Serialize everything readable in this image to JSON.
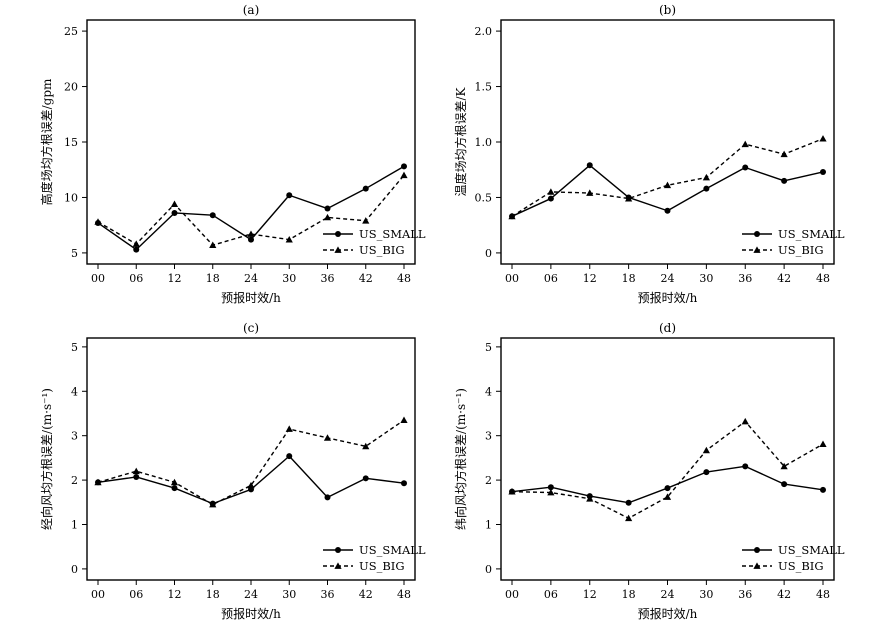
{
  "figure": {
    "x_categories": [
      "00",
      "06",
      "12",
      "18",
      "24",
      "30",
      "36",
      "42",
      "48"
    ]
  },
  "chart_data": [
    {
      "type": "line",
      "title": "(a)",
      "xlabel": "预报时效/h",
      "ylabel": "高度场均方根误差/gpm",
      "ylim": [
        4,
        26
      ],
      "yticks": [
        5,
        10,
        15,
        20,
        25
      ],
      "ytick_labels": [
        "5",
        "10",
        "15",
        "20",
        "25"
      ],
      "legend_position": "bottom-right",
      "categories": [
        "00",
        "06",
        "12",
        "18",
        "24",
        "30",
        "36",
        "42",
        "48"
      ],
      "series": [
        {
          "name": "US_SMALL",
          "line": "solid",
          "marker": "circle",
          "values": [
            7.7,
            5.3,
            8.6,
            8.4,
            6.2,
            10.2,
            9.0,
            10.8,
            12.8
          ]
        },
        {
          "name": "US_BIG",
          "line": "dashed",
          "marker": "triangle",
          "values": [
            7.8,
            5.8,
            9.4,
            5.7,
            6.7,
            6.2,
            8.2,
            7.9,
            12.0
          ]
        }
      ]
    },
    {
      "type": "line",
      "title": "(b)",
      "xlabel": "预报时效/h",
      "ylabel": "温度场均方根误差/K",
      "ylim": [
        -0.1,
        2.1
      ],
      "yticks": [
        0,
        0.5,
        1.0,
        1.5,
        2.0
      ],
      "ytick_labels": [
        "0",
        "0.5",
        "1.0",
        "1.5",
        "2.0"
      ],
      "legend_position": "bottom-right",
      "categories": [
        "00",
        "06",
        "12",
        "18",
        "24",
        "30",
        "36",
        "42",
        "48"
      ],
      "series": [
        {
          "name": "US_SMALL",
          "line": "solid",
          "marker": "circle",
          "values": [
            0.33,
            0.49,
            0.79,
            0.5,
            0.38,
            0.58,
            0.77,
            0.65,
            0.73
          ]
        },
        {
          "name": "US_BIG",
          "line": "dashed",
          "marker": "triangle",
          "values": [
            0.33,
            0.55,
            0.54,
            0.49,
            0.61,
            0.68,
            0.98,
            0.89,
            1.03
          ]
        }
      ]
    },
    {
      "type": "line",
      "title": "(c)",
      "xlabel": "预报时效/h",
      "ylabel": "经向风均方根误差/(m·s⁻¹)",
      "ylim": [
        -0.25,
        5.2
      ],
      "yticks": [
        0,
        1,
        2,
        3,
        4,
        5
      ],
      "ytick_labels": [
        "0",
        "1",
        "2",
        "3",
        "4",
        "5"
      ],
      "legend_position": "bottom-right",
      "categories": [
        "00",
        "06",
        "12",
        "18",
        "24",
        "30",
        "36",
        "42",
        "48"
      ],
      "series": [
        {
          "name": "US_SMALL",
          "line": "solid",
          "marker": "circle",
          "values": [
            1.95,
            2.07,
            1.82,
            1.47,
            1.79,
            2.54,
            1.61,
            2.04,
            1.93
          ]
        },
        {
          "name": "US_BIG",
          "line": "dashed",
          "marker": "triangle",
          "values": [
            1.95,
            2.2,
            1.95,
            1.45,
            1.88,
            3.15,
            2.95,
            2.76,
            3.35
          ]
        }
      ]
    },
    {
      "type": "line",
      "title": "(d)",
      "xlabel": "预报时效/h",
      "ylabel": "纬向风均方根误差/(m·s⁻¹)",
      "ylim": [
        -0.25,
        5.2
      ],
      "yticks": [
        0,
        1,
        2,
        3,
        4,
        5
      ],
      "ytick_labels": [
        "0",
        "1",
        "2",
        "3",
        "4",
        "5"
      ],
      "legend_position": "bottom-right",
      "categories": [
        "00",
        "06",
        "12",
        "18",
        "24",
        "30",
        "36",
        "42",
        "48"
      ],
      "series": [
        {
          "name": "US_SMALL",
          "line": "solid",
          "marker": "circle",
          "values": [
            1.74,
            1.84,
            1.64,
            1.49,
            1.82,
            2.18,
            2.31,
            1.91,
            1.78
          ]
        },
        {
          "name": "US_BIG",
          "line": "dashed",
          "marker": "triangle",
          "values": [
            1.74,
            1.72,
            1.58,
            1.14,
            1.62,
            2.67,
            3.32,
            2.31,
            2.81
          ]
        }
      ]
    }
  ]
}
